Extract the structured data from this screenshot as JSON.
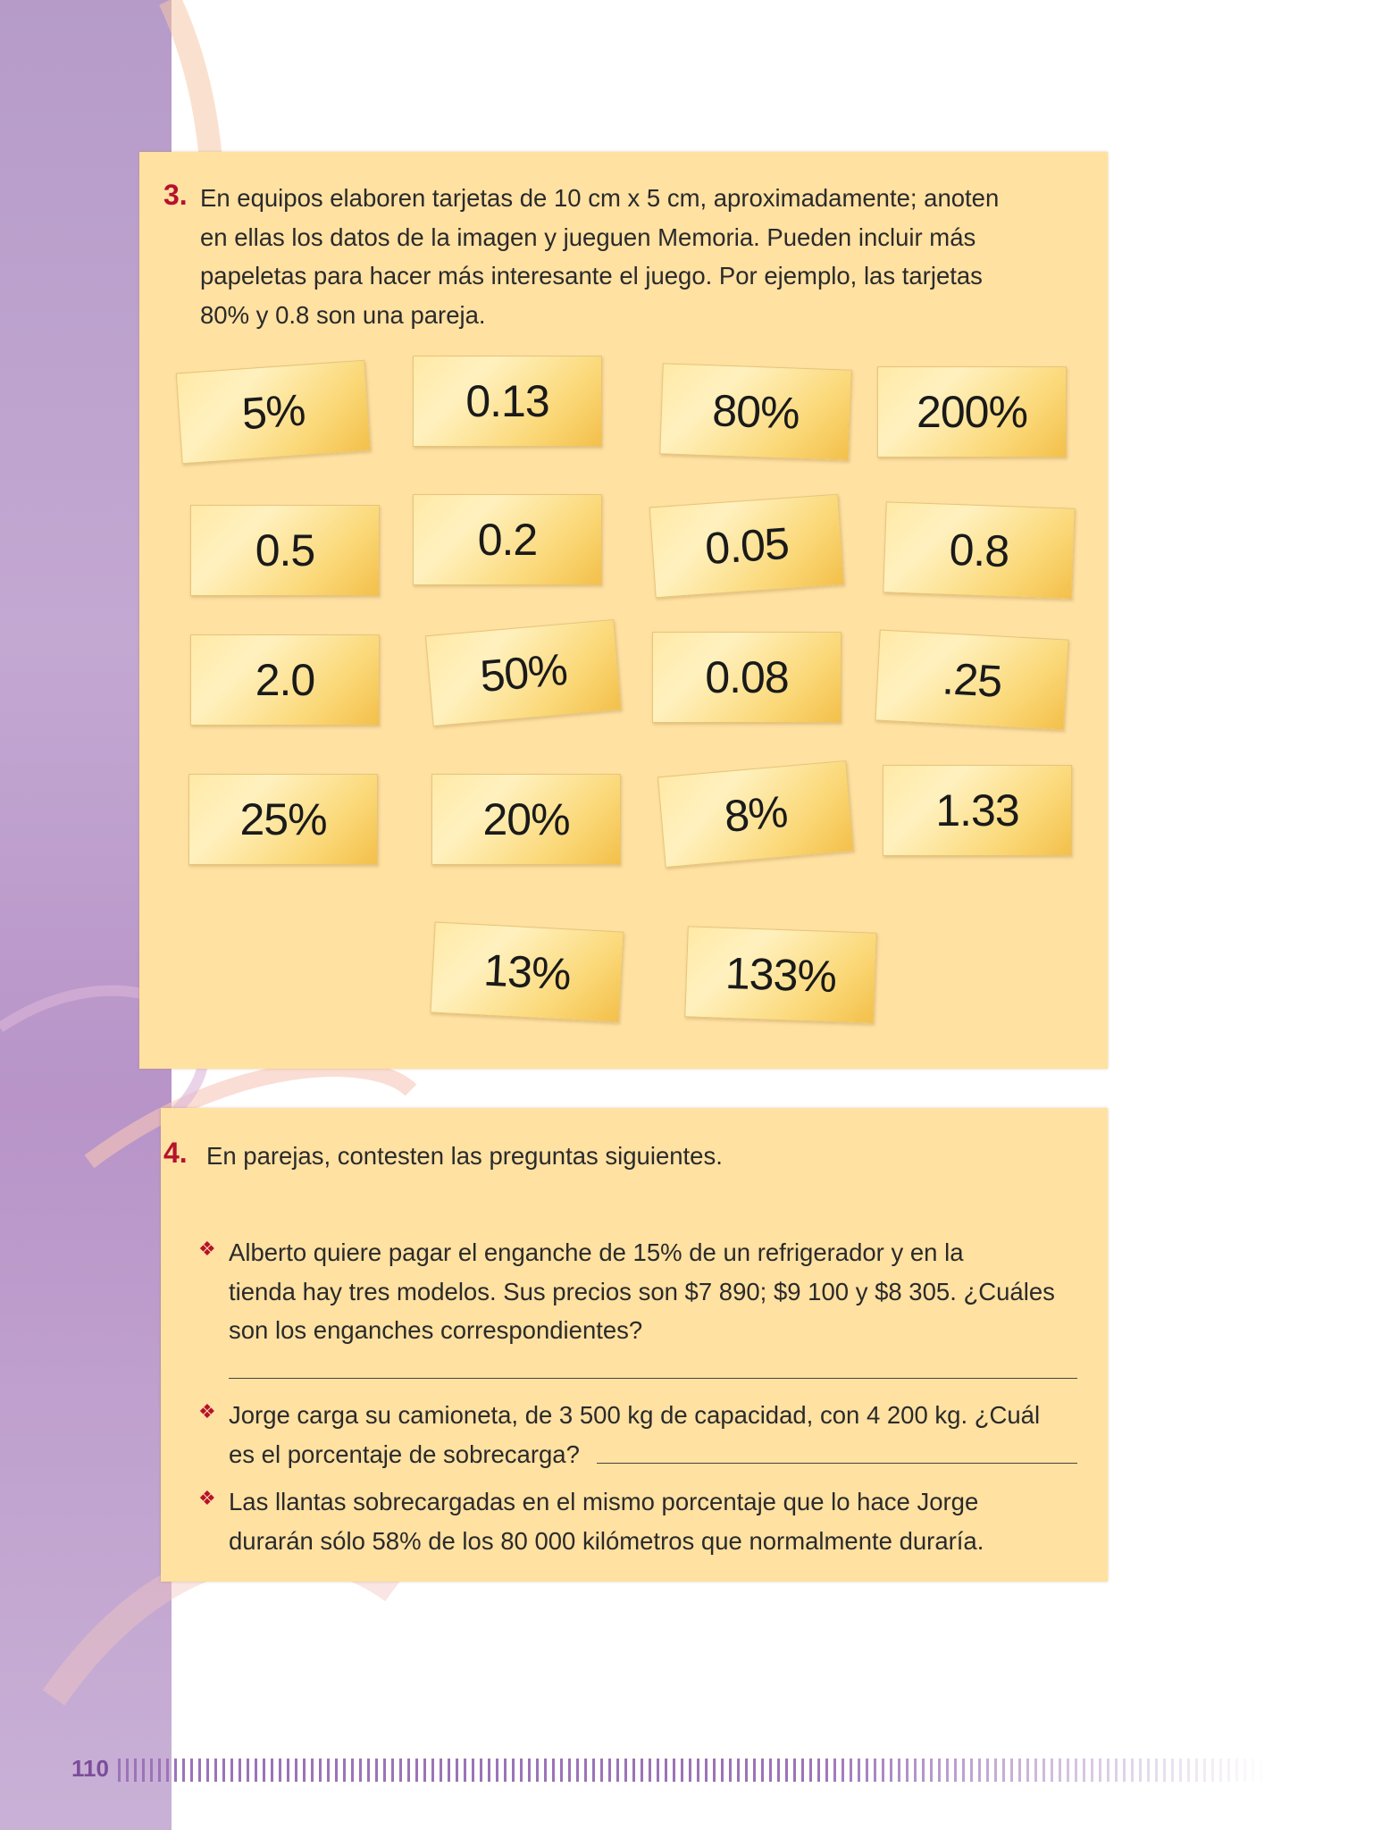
{
  "exercise3": {
    "number": "3.",
    "lines": [
      "En equipos elaboren tarjetas de 10 cm x 5 cm, aproximadamente; anoten",
      "en ellas los datos de la imagen y jueguen Memoria. Pueden incluir más",
      "papeletas para hacer más interesante el juego. Por ejemplo, las tarjetas",
      "80% y 0.8 son una pareja."
    ],
    "cards": [
      "5%",
      "0.13",
      "80%",
      "200%",
      "0.5",
      "0.2",
      "0.05",
      "0.8",
      "2.0",
      "50%",
      "0.08",
      ".25",
      "25%",
      "20%",
      "8%",
      "1.33",
      "13%",
      "133%"
    ]
  },
  "exercise4": {
    "number": "4.",
    "intro": "En parejas, contesten las preguntas siguientes.",
    "bullet_symbol": "❖",
    "q1_lines": [
      "Alberto quiere pagar el enganche de 15% de un refrigerador y en la",
      "tienda hay tres modelos. Sus precios son $7 890; $9 100 y $8 305. ¿Cuáles",
      "son los enganches correspondientes?"
    ],
    "q2_lines": [
      "Jorge carga su camioneta, de 3 500 kg de capacidad, con 4 200 kg. ¿Cuál",
      "es el porcentaje de sobrecarga?"
    ],
    "q3_lines": [
      "Las llantas sobrecargadas en el mismo porcentaje que lo hace Jorge",
      "durarán sólo 58% de los 80 000 kilómetros que normalmente duraría."
    ]
  },
  "footer": {
    "page_number": "110"
  },
  "colors": {
    "accent": "#b5122d",
    "box": "#ffe1a2",
    "sidebar": "#b69bc9",
    "page_number": "#7c4d9a"
  }
}
